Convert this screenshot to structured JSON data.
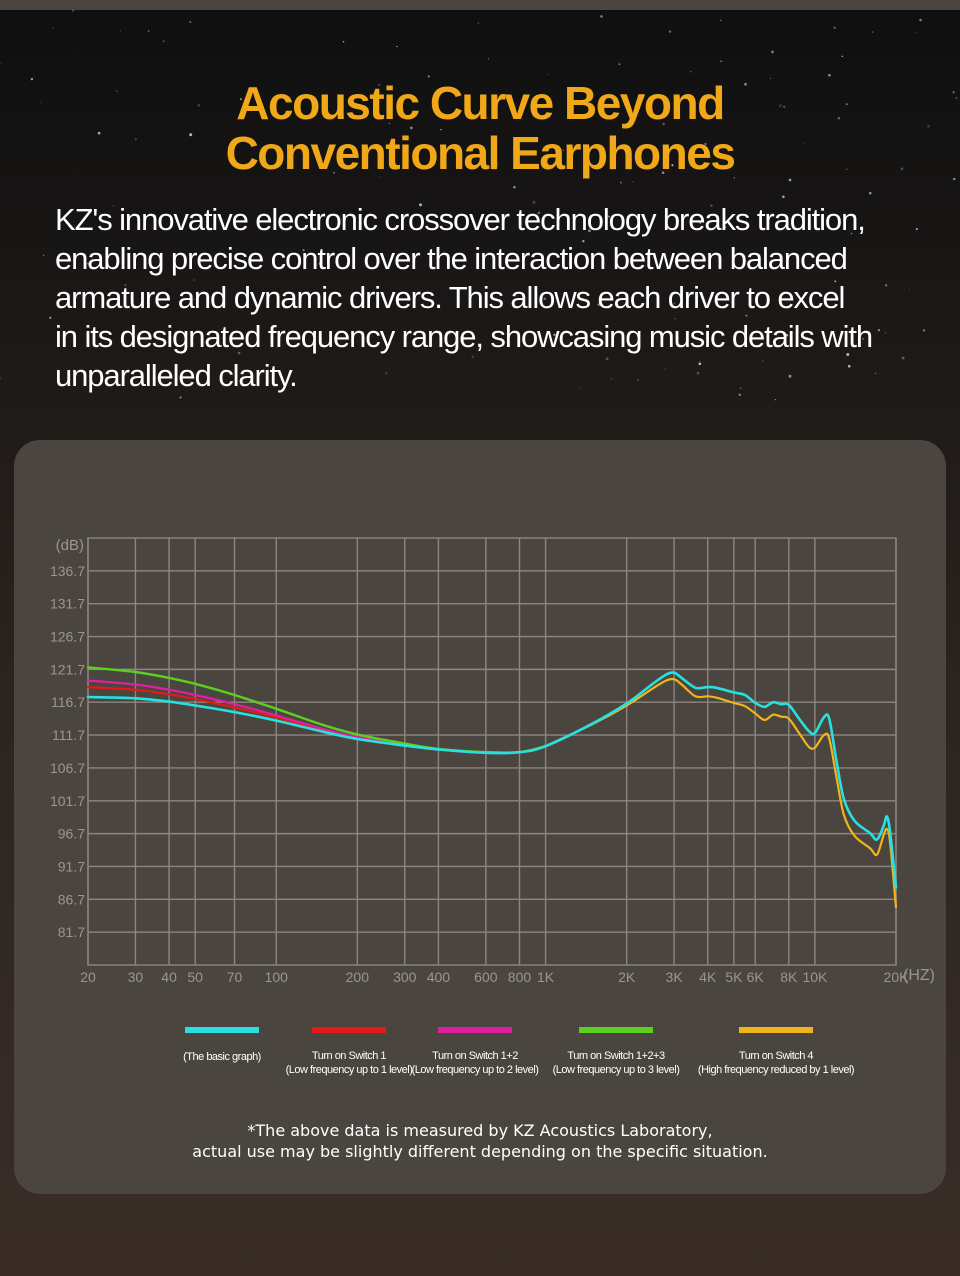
{
  "header": {
    "title_line1": "Acoustic Curve Beyond",
    "title_line2": "Conventional Earphones",
    "intro_lines": [
      "KZ's innovative electronic crossover technology breaks tradition,",
      "enabling precise control over the interaction between balanced",
      "armature and dynamic drivers. This allows each driver to excel",
      "in its designated frequency range, showcasing music details with",
      "unparalleled clarity."
    ]
  },
  "colors": {
    "title": "#f0a818",
    "panel": "#4b4540",
    "grid": "#8c8682",
    "axis_text": "#9a9591"
  },
  "chart_data": {
    "type": "line",
    "ylabel": "(dB)",
    "xlabel": "(HZ)",
    "x_scale": "log",
    "xlim": [
      20,
      20000
    ],
    "ylim": [
      76.7,
      141.7
    ],
    "y_ticks": [
      136.7,
      131.7,
      126.7,
      121.7,
      116.7,
      111.7,
      106.7,
      101.7,
      96.7,
      91.7,
      86.7,
      81.7
    ],
    "x_ticks": [
      {
        "v": 20,
        "label": "20"
      },
      {
        "v": 30,
        "label": "30"
      },
      {
        "v": 40,
        "label": "40"
      },
      {
        "v": 50,
        "label": "50"
      },
      {
        "v": 70,
        "label": "70"
      },
      {
        "v": 100,
        "label": "100"
      },
      {
        "v": 200,
        "label": "200"
      },
      {
        "v": 300,
        "label": "300"
      },
      {
        "v": 400,
        "label": "400"
      },
      {
        "v": 600,
        "label": "600"
      },
      {
        "v": 800,
        "label": "800"
      },
      {
        "v": 1000,
        "label": "1K"
      },
      {
        "v": 2000,
        "label": "2K"
      },
      {
        "v": 3000,
        "label": "3K"
      },
      {
        "v": 4000,
        "label": "4K"
      },
      {
        "v": 5000,
        "label": "5K"
      },
      {
        "v": 6000,
        "label": "6K"
      },
      {
        "v": 8000,
        "label": "8K"
      },
      {
        "v": 10000,
        "label": "10K"
      },
      {
        "v": 20000,
        "label": "20K"
      }
    ],
    "grid": true,
    "series": [
      {
        "name": "(The basic graph)",
        "color": "#28e0e0",
        "width": 2.6,
        "points": [
          [
            20,
            117.5
          ],
          [
            30,
            117.3
          ],
          [
            40,
            116.8
          ],
          [
            50,
            116.2
          ],
          [
            70,
            115.2
          ],
          [
            100,
            113.9
          ],
          [
            150,
            112.2
          ],
          [
            200,
            111.1
          ],
          [
            300,
            110.1
          ],
          [
            400,
            109.5
          ],
          [
            600,
            109.0
          ],
          [
            800,
            109.1
          ],
          [
            1000,
            110.0
          ],
          [
            1500,
            113.5
          ],
          [
            2000,
            116.5
          ],
          [
            2500,
            119.5
          ],
          [
            2800,
            120.9
          ],
          [
            3000,
            121.2
          ],
          [
            3200,
            120.4
          ],
          [
            3600,
            118.9
          ],
          [
            4000,
            119.0
          ],
          [
            4300,
            118.9
          ],
          [
            5000,
            118.2
          ],
          [
            5500,
            117.8
          ],
          [
            6000,
            116.6
          ],
          [
            6500,
            116.0
          ],
          [
            7000,
            116.7
          ],
          [
            7500,
            116.4
          ],
          [
            8000,
            116.3
          ],
          [
            8800,
            114.0
          ],
          [
            9500,
            112.3
          ],
          [
            10000,
            112.0
          ],
          [
            10800,
            114.4
          ],
          [
            11300,
            114.2
          ],
          [
            12000,
            108.0
          ],
          [
            12800,
            102.0
          ],
          [
            14000,
            98.7
          ],
          [
            16000,
            96.8
          ],
          [
            17000,
            95.8
          ],
          [
            18000,
            97.9
          ],
          [
            18500,
            99.3
          ],
          [
            19000,
            97.0
          ],
          [
            20000,
            88.5
          ]
        ]
      },
      {
        "name": "Turn on Switch 1",
        "color": "#e81818",
        "width": 2.2,
        "points": [
          [
            20,
            119.0
          ],
          [
            30,
            118.6
          ],
          [
            40,
            117.9
          ],
          [
            50,
            117.2
          ],
          [
            70,
            115.9
          ],
          [
            100,
            114.4
          ],
          [
            150,
            112.4
          ],
          [
            200,
            111.3
          ],
          [
            300,
            110.2
          ],
          [
            400,
            109.5
          ],
          [
            600,
            109.0
          ],
          [
            800,
            109.1
          ],
          [
            1000,
            110.0
          ]
        ]
      },
      {
        "name": "Turn on Switch 1+2",
        "color": "#e020a0",
        "width": 2.2,
        "points": [
          [
            20,
            120.0
          ],
          [
            30,
            119.4
          ],
          [
            40,
            118.6
          ],
          [
            50,
            117.8
          ],
          [
            70,
            116.4
          ],
          [
            100,
            114.7
          ],
          [
            150,
            112.6
          ],
          [
            200,
            111.4
          ],
          [
            300,
            110.2
          ],
          [
            400,
            109.5
          ],
          [
            600,
            109.0
          ],
          [
            800,
            109.1
          ],
          [
            1000,
            110.0
          ]
        ]
      },
      {
        "name": "Turn on Switch 1+2+3",
        "color": "#5cd020",
        "width": 2.4,
        "points": [
          [
            20,
            122.0
          ],
          [
            30,
            121.3
          ],
          [
            40,
            120.4
          ],
          [
            50,
            119.5
          ],
          [
            70,
            117.8
          ],
          [
            100,
            115.7
          ],
          [
            150,
            113.2
          ],
          [
            200,
            111.8
          ],
          [
            300,
            110.4
          ],
          [
            400,
            109.6
          ],
          [
            600,
            109.1
          ],
          [
            800,
            109.1
          ],
          [
            1000,
            110.0
          ]
        ]
      },
      {
        "name": "Turn on Switch 4",
        "color": "#f2b41c",
        "width": 2.2,
        "points": [
          [
            1000,
            110.0
          ],
          [
            1500,
            113.4
          ],
          [
            2000,
            116.2
          ],
          [
            2500,
            118.8
          ],
          [
            2800,
            120.0
          ],
          [
            3000,
            120.2
          ],
          [
            3200,
            119.4
          ],
          [
            3600,
            117.6
          ],
          [
            4000,
            117.6
          ],
          [
            4300,
            117.4
          ],
          [
            5000,
            116.6
          ],
          [
            5500,
            116.1
          ],
          [
            6000,
            115.0
          ],
          [
            6500,
            114.0
          ],
          [
            7000,
            114.8
          ],
          [
            7500,
            114.5
          ],
          [
            8000,
            114.2
          ],
          [
            8800,
            111.8
          ],
          [
            9500,
            109.9
          ],
          [
            10000,
            109.8
          ],
          [
            10800,
            111.7
          ],
          [
            11300,
            111.2
          ],
          [
            12000,
            105.5
          ],
          [
            12800,
            99.6
          ],
          [
            14000,
            96.4
          ],
          [
            16000,
            94.5
          ],
          [
            17000,
            93.5
          ],
          [
            18000,
            96.5
          ],
          [
            18500,
            97.4
          ],
          [
            19000,
            95.5
          ],
          [
            20000,
            85.5
          ]
        ]
      }
    ]
  },
  "legend": [
    {
      "color": "#28e0e0",
      "line1": "(The basic graph)",
      "line2": ""
    },
    {
      "color": "#e81818",
      "line1": "Turn on Switch 1",
      "line2": "(Low frequency up to 1 level)"
    },
    {
      "color": "#e020a0",
      "line1": "Turn on Switch 1+2",
      "line2": "(Low frequency up to 2 level)"
    },
    {
      "color": "#5cd020",
      "line1": "Turn on Switch 1+2+3",
      "line2": "(Low frequency up to 3 level)"
    },
    {
      "color": "#f2b41c",
      "line1": "Turn on Switch 4",
      "line2": "(High frequency reduced by 1 level)"
    }
  ],
  "footnote": {
    "line1": "*The above data is measured by KZ Acoustics Laboratory,",
    "line2": "actual use may be slightly different depending on the specific situation."
  }
}
